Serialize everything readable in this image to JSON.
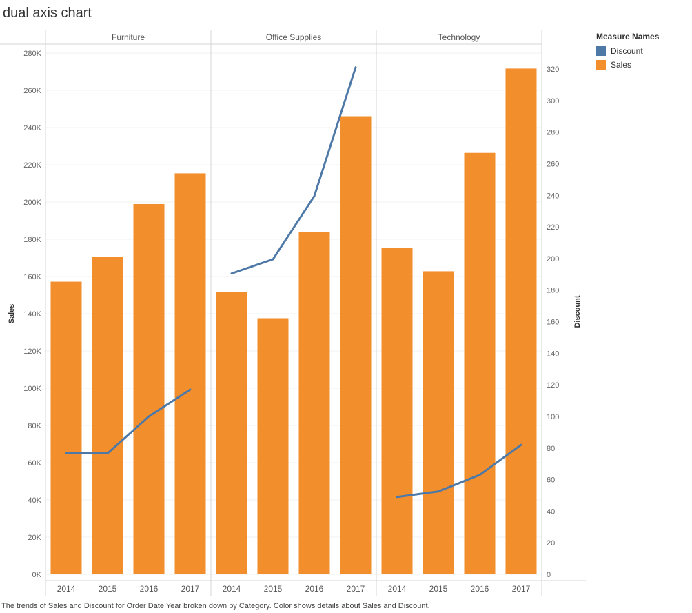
{
  "title": "dual axis chart",
  "caption": "The trends of Sales and Discount for Order Date Year broken down by Category.  Color shows details about Sales and Discount.",
  "legend": {
    "title": "Measure Names",
    "items": [
      {
        "label": "Discount",
        "color": "#4e79a7"
      },
      {
        "label": "Sales",
        "color": "#f28e2b"
      }
    ]
  },
  "chart_data": {
    "type": "bar",
    "categories": [
      "Furniture",
      "Office Supplies",
      "Technology"
    ],
    "x": [
      "2014",
      "2015",
      "2016",
      "2017"
    ],
    "series": [
      {
        "name": "Sales",
        "mark": "bar",
        "axis": "left",
        "color": "#f28e2b",
        "values": [
          [
            157200,
            170500,
            198900,
            215400
          ],
          [
            151800,
            137600,
            183900,
            246100
          ],
          [
            175300,
            162800,
            226400,
            271700
          ]
        ]
      },
      {
        "name": "Discount",
        "mark": "line",
        "axis": "right",
        "color": "#4e79a7",
        "values": [
          [
            77,
            76.6,
            100,
            117
          ],
          [
            190.5,
            199.5,
            239.5,
            321
          ],
          [
            49,
            52.5,
            63,
            82
          ]
        ]
      }
    ],
    "y_left": {
      "label": "Sales",
      "ylim": [
        0,
        280000
      ],
      "ticks": [
        0,
        20000,
        40000,
        60000,
        80000,
        100000,
        120000,
        140000,
        160000,
        180000,
        200000,
        220000,
        240000,
        260000,
        280000
      ],
      "tick_labels": [
        "0K",
        "20K",
        "40K",
        "60K",
        "80K",
        "100K",
        "120K",
        "140K",
        "160K",
        "180K",
        "200K",
        "220K",
        "240K",
        "260K",
        "280K"
      ]
    },
    "y_right": {
      "label": "Discount",
      "ylim": [
        0,
        331
      ],
      "ticks": [
        0,
        20,
        40,
        60,
        80,
        100,
        120,
        140,
        160,
        180,
        200,
        220,
        240,
        260,
        280,
        300,
        320
      ],
      "tick_labels": [
        "0",
        "20",
        "40",
        "60",
        "80",
        "100",
        "120",
        "140",
        "160",
        "180",
        "200",
        "220",
        "240",
        "260",
        "280",
        "300",
        "320"
      ]
    },
    "grid": true,
    "legend_position": "top-right"
  }
}
